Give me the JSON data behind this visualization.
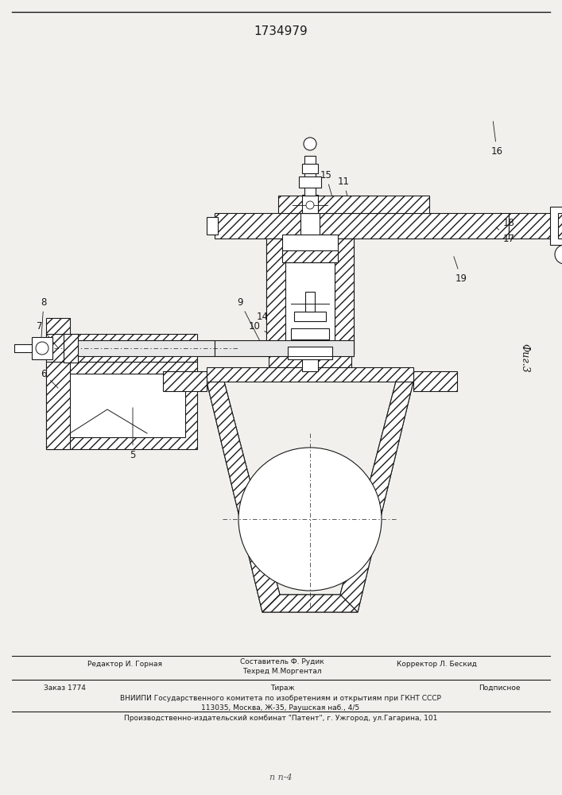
{
  "title": "1734979",
  "fig_label": "Фиг.3",
  "bg_color": "#f2f0ed",
  "line_color": "#1a1a1a",
  "footer": {
    "line1_left": "Редактор И. Горная",
    "line1_center": "Составитель Ф. Рудик",
    "line1_center2": "Техред М.Моргентал",
    "line1_right": "Корректор Л. Бескид",
    "line2_left": "Заказ 1774",
    "line2_center": "Тираж",
    "line2_right": "Подписное",
    "line3": "ВНИИПИ Государственного комитета по изобретениям и открытиям при ГКНТ СССР",
    "line4": "113035, Москва, Ж-35, Раушская наб., 4/5",
    "line5": "Производственно-издательский комбинат \"Патент\", г. Ужгород, ул.Гагарина, 101"
  }
}
